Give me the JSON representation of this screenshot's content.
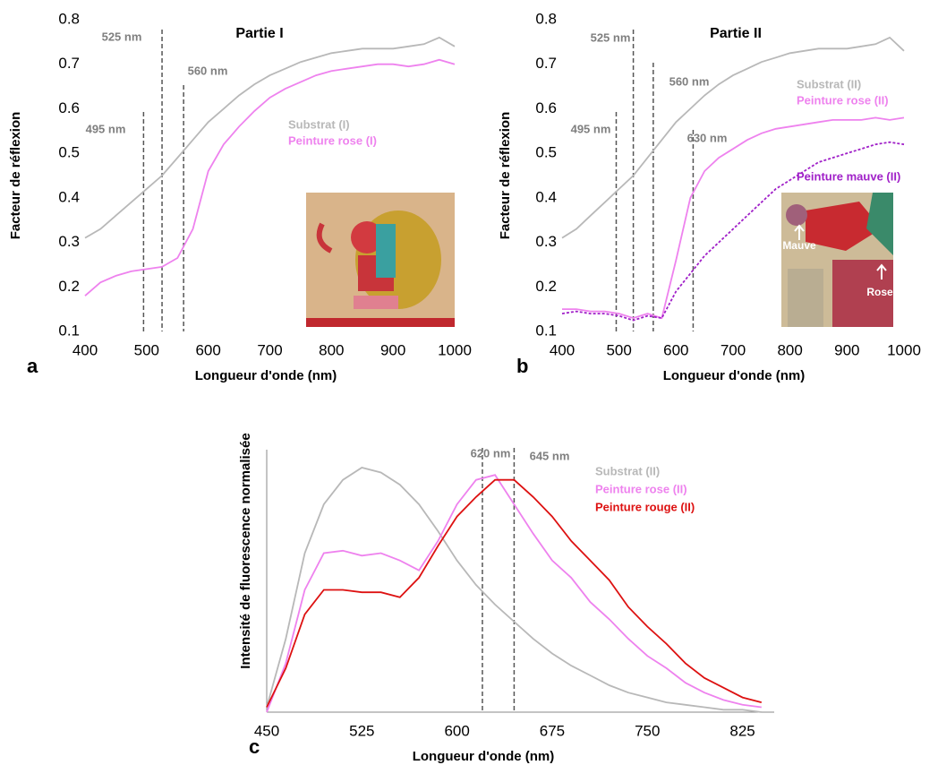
{
  "chart_data": [
    {
      "type": "line",
      "panel": "a",
      "title": "Partie I",
      "xlabel": "Longueur d'onde (nm)",
      "ylabel": "Facteur de réflexion",
      "x": [
        400,
        425,
        450,
        475,
        500,
        525,
        550,
        575,
        600,
        625,
        650,
        675,
        700,
        725,
        750,
        775,
        800,
        825,
        850,
        875,
        900,
        925,
        950,
        975,
        1000
      ],
      "xlim": [
        400,
        1000
      ],
      "xticks": [
        400,
        500,
        600,
        700,
        800,
        900,
        1000
      ],
      "ylim": [
        0.1,
        0.8
      ],
      "yticks": [
        0.1,
        0.2,
        0.3,
        0.4,
        0.5,
        0.6,
        0.7,
        0.8
      ],
      "series": [
        {
          "name": "Substrat (I)",
          "color": "#b8b8b8",
          "values": [
            0.31,
            0.33,
            0.36,
            0.39,
            0.42,
            0.45,
            0.49,
            0.53,
            0.57,
            0.6,
            0.63,
            0.655,
            0.675,
            0.69,
            0.705,
            0.715,
            0.725,
            0.73,
            0.735,
            0.735,
            0.735,
            0.74,
            0.745,
            0.76,
            0.74
          ]
        },
        {
          "name": "Peinture rose  (I)",
          "color": "#ee82ee",
          "values": [
            0.18,
            0.21,
            0.225,
            0.235,
            0.24,
            0.245,
            0.265,
            0.33,
            0.46,
            0.52,
            0.56,
            0.595,
            0.625,
            0.645,
            0.66,
            0.675,
            0.685,
            0.69,
            0.695,
            0.7,
            0.7,
            0.695,
            0.7,
            0.71,
            0.7
          ]
        }
      ],
      "annotations": [
        {
          "x": 495,
          "label": "495 nm"
        },
        {
          "x": 525,
          "label": "525 nm"
        },
        {
          "x": 560,
          "label": "560 nm"
        }
      ]
    },
    {
      "type": "line",
      "panel": "b",
      "title": "Partie II",
      "xlabel": "Longueur d'onde (nm)",
      "ylabel": "Facteur de réflexion",
      "x": [
        400,
        425,
        450,
        475,
        500,
        525,
        550,
        575,
        600,
        625,
        650,
        675,
        700,
        725,
        750,
        775,
        800,
        825,
        850,
        875,
        900,
        925,
        950,
        975,
        1000
      ],
      "xlim": [
        400,
        1000
      ],
      "xticks": [
        400,
        500,
        600,
        700,
        800,
        900,
        1000
      ],
      "ylim": [
        0.1,
        0.8
      ],
      "yticks": [
        0.1,
        0.2,
        0.3,
        0.4,
        0.5,
        0.6,
        0.7,
        0.8
      ],
      "series": [
        {
          "name": "Substrat (II)",
          "color": "#b8b8b8",
          "values": [
            0.31,
            0.33,
            0.36,
            0.39,
            0.42,
            0.45,
            0.49,
            0.53,
            0.57,
            0.6,
            0.63,
            0.655,
            0.675,
            0.69,
            0.705,
            0.715,
            0.725,
            0.73,
            0.735,
            0.735,
            0.735,
            0.74,
            0.745,
            0.76,
            0.73
          ]
        },
        {
          "name": "Peinture rose  (II)",
          "color": "#ee82ee",
          "values": [
            0.15,
            0.15,
            0.145,
            0.145,
            0.14,
            0.13,
            0.14,
            0.13,
            0.26,
            0.4,
            0.46,
            0.49,
            0.51,
            0.53,
            0.545,
            0.555,
            0.56,
            0.565,
            0.57,
            0.575,
            0.575,
            0.575,
            0.58,
            0.575,
            0.58
          ]
        },
        {
          "name": "Peinture mauve (II)",
          "color": "#a020c8",
          "dashed": true,
          "values": [
            0.14,
            0.145,
            0.14,
            0.14,
            0.135,
            0.125,
            0.135,
            0.13,
            0.19,
            0.23,
            0.27,
            0.3,
            0.33,
            0.36,
            0.39,
            0.42,
            0.44,
            0.46,
            0.48,
            0.49,
            0.5,
            0.51,
            0.52,
            0.525,
            0.52
          ]
        }
      ],
      "annotations": [
        {
          "x": 495,
          "label": "495 nm"
        },
        {
          "x": 525,
          "label": "525 nm"
        },
        {
          "x": 560,
          "label": "560 nm"
        },
        {
          "x": 630,
          "label": "630 nm"
        }
      ],
      "inset_labels": [
        "Mauve",
        "Rose"
      ]
    },
    {
      "type": "line",
      "panel": "c",
      "xlabel": "Longueur d'onde (nm)",
      "ylabel": "Intensité de fluorescence normalisée",
      "x": [
        450,
        465,
        480,
        495,
        510,
        525,
        540,
        555,
        570,
        585,
        600,
        615,
        630,
        645,
        660,
        675,
        690,
        705,
        720,
        735,
        750,
        765,
        780,
        795,
        810,
        825,
        840
      ],
      "xlim": [
        450,
        850
      ],
      "xticks": [
        450,
        525,
        600,
        675,
        750,
        825
      ],
      "ylim": [
        0,
        1
      ],
      "series": [
        {
          "name": "Substrat (II)",
          "color": "#b8b8b8",
          "values": [
            0.02,
            0.3,
            0.65,
            0.85,
            0.95,
            1.0,
            0.98,
            0.93,
            0.85,
            0.74,
            0.62,
            0.52,
            0.44,
            0.37,
            0.3,
            0.24,
            0.19,
            0.15,
            0.11,
            0.08,
            0.06,
            0.04,
            0.03,
            0.02,
            0.01,
            0.01,
            0.0
          ]
        },
        {
          "name": "Peinture rose  (II)",
          "color": "#ee82ee",
          "values": [
            0.0,
            0.2,
            0.5,
            0.65,
            0.66,
            0.64,
            0.65,
            0.62,
            0.58,
            0.7,
            0.85,
            0.95,
            0.97,
            0.85,
            0.73,
            0.62,
            0.55,
            0.45,
            0.38,
            0.3,
            0.23,
            0.18,
            0.12,
            0.08,
            0.05,
            0.03,
            0.02
          ]
        },
        {
          "name": "Peinture rouge (II)",
          "color": "#dd1111",
          "values": [
            0.02,
            0.18,
            0.4,
            0.5,
            0.5,
            0.49,
            0.49,
            0.47,
            0.55,
            0.68,
            0.8,
            0.88,
            0.95,
            0.95,
            0.88,
            0.8,
            0.7,
            0.62,
            0.54,
            0.43,
            0.35,
            0.28,
            0.2,
            0.14,
            0.1,
            0.06,
            0.04
          ]
        }
      ],
      "annotations": [
        {
          "x": 620,
          "label": "620 nm"
        },
        {
          "x": 645,
          "label": "645 nm"
        }
      ]
    }
  ]
}
